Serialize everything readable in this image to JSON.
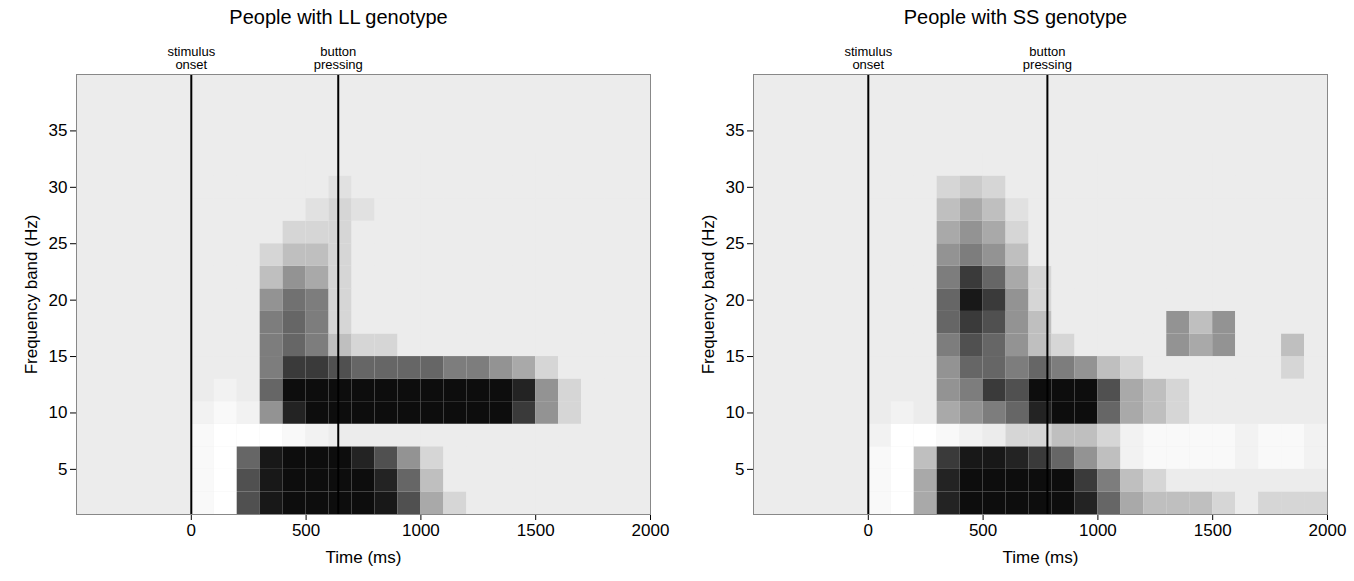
{
  "chart_data": [
    {
      "type": "heatmap",
      "title": "People with LL genotype",
      "x_label": "Time (ms)",
      "y_label": "Frequency band (Hz)",
      "xlim": [
        -500,
        2000
      ],
      "xticks": [
        0,
        500,
        1000,
        1500,
        2000
      ],
      "ylim": [
        1,
        40
      ],
      "yticks": [
        5,
        10,
        15,
        20,
        25,
        30,
        35
      ],
      "annotations": [
        {
          "x": 0,
          "text": "stimulus onset"
        },
        {
          "x": 640,
          "text": "button pressing"
        }
      ],
      "power_scale": [
        -0.3,
        0,
        1
      ],
      "time_bins": [
        0,
        100,
        200,
        300,
        400,
        500,
        600,
        700,
        800,
        900,
        1000,
        1100,
        1200,
        1300,
        1400,
        1500,
        1600,
        1700,
        1800,
        1900,
        2000
      ],
      "freq_bins": [
        1,
        3,
        5,
        7,
        9,
        11,
        13,
        15,
        17,
        19,
        21,
        23,
        25,
        27,
        29,
        31,
        33
      ],
      "power": [
        [
          -0.2,
          -0.3,
          0.7,
          0.95,
          1,
          1,
          1,
          1,
          0.95,
          0.7,
          0.3,
          0.1,
          0,
          0,
          0,
          0,
          0,
          0,
          0,
          0
        ],
        [
          -0.2,
          -0.3,
          0.7,
          0.95,
          1,
          1,
          1,
          1,
          0.9,
          0.6,
          0.2,
          0,
          0,
          0,
          0,
          0,
          0,
          0,
          0,
          0
        ],
        [
          -0.2,
          -0.3,
          0.6,
          0.95,
          1,
          1,
          1,
          0.9,
          0.7,
          0.4,
          0.1,
          0,
          0,
          0,
          0,
          0,
          0,
          0,
          0,
          0
        ],
        [
          -0.2,
          -0.3,
          -0.3,
          -0.3,
          -0.2,
          -0.1,
          0,
          0,
          0,
          0,
          0,
          0,
          0,
          0,
          0,
          0,
          0,
          0,
          0,
          0
        ],
        [
          -0.1,
          -0.2,
          -0.1,
          0.4,
          0.9,
          1,
          1,
          1,
          1,
          1,
          1,
          1,
          1,
          1,
          0.8,
          0.4,
          0.1,
          0,
          0,
          0
        ],
        [
          0,
          -0.1,
          0,
          0.6,
          1,
          1,
          1,
          1,
          1,
          1,
          1,
          1,
          1,
          1,
          0.9,
          0.4,
          0.1,
          0,
          0,
          0
        ],
        [
          0,
          0,
          0,
          0.5,
          0.8,
          0.8,
          0.7,
          0.6,
          0.6,
          0.6,
          0.6,
          0.5,
          0.5,
          0.4,
          0.3,
          0.1,
          0,
          0,
          0,
          0
        ],
        [
          0,
          0,
          0,
          0.5,
          0.6,
          0.5,
          0.2,
          0.1,
          0.1,
          0,
          0,
          0,
          0,
          0,
          0,
          0,
          0,
          0,
          0,
          0
        ],
        [
          0,
          0,
          0,
          0.5,
          0.6,
          0.5,
          0.1,
          0,
          0,
          0,
          0,
          0,
          0,
          0,
          0,
          0,
          0,
          0,
          0,
          0
        ],
        [
          0,
          0,
          0,
          0.4,
          0.55,
          0.5,
          0.1,
          0,
          0,
          0,
          0,
          0,
          0,
          0,
          0,
          0,
          0,
          0,
          0,
          0
        ],
        [
          0,
          0,
          0,
          0.2,
          0.4,
          0.3,
          0.1,
          0,
          0,
          0,
          0,
          0,
          0,
          0,
          0,
          0,
          0,
          0,
          0,
          0
        ],
        [
          0,
          0,
          0,
          0.1,
          0.2,
          0.2,
          0.1,
          0,
          0,
          0,
          0,
          0,
          0,
          0,
          0,
          0,
          0,
          0,
          0,
          0
        ],
        [
          0,
          0,
          0,
          0,
          0.1,
          0.1,
          0.1,
          0,
          0,
          0,
          0,
          0,
          0,
          0,
          0,
          0,
          0,
          0,
          0,
          0
        ],
        [
          0,
          0,
          0,
          0,
          0,
          0.05,
          0.1,
          0.05,
          0,
          0,
          0,
          0,
          0,
          0,
          0,
          0,
          0,
          0,
          0,
          0
        ],
        [
          0,
          0,
          0,
          0,
          0,
          0,
          0.05,
          0,
          0,
          0,
          0,
          0,
          0,
          0,
          0,
          0,
          0,
          0,
          0,
          0
        ],
        [
          0,
          0,
          0,
          0,
          0,
          0,
          0,
          0,
          0,
          0,
          0,
          0,
          0,
          0,
          0,
          0,
          0,
          0,
          0,
          0
        ]
      ]
    },
    {
      "type": "heatmap",
      "title": "People with SS genotype",
      "x_label": "Time (ms)",
      "y_label": "Frequency band (Hz)",
      "xlim": [
        -500,
        2000
      ],
      "xticks": [
        0,
        500,
        1000,
        1500,
        2000
      ],
      "ylim": [
        1,
        40
      ],
      "yticks": [
        5,
        10,
        15,
        20,
        25,
        30,
        35
      ],
      "annotations": [
        {
          "x": 0,
          "text": "stimulus onset"
        },
        {
          "x": 780,
          "text": "button pressing"
        }
      ],
      "power_scale": [
        -0.3,
        0,
        1
      ],
      "time_bins": [
        0,
        100,
        200,
        300,
        400,
        500,
        600,
        700,
        800,
        900,
        1000,
        1100,
        1200,
        1300,
        1400,
        1500,
        1600,
        1700,
        1800,
        1900,
        2000
      ],
      "freq_bins": [
        1,
        3,
        5,
        7,
        9,
        11,
        13,
        15,
        17,
        19,
        21,
        23,
        25,
        27,
        29,
        31,
        33
      ],
      "power": [
        [
          -0.2,
          -0.3,
          0.3,
          0.9,
          1,
          1,
          1,
          1,
          1,
          0.9,
          0.6,
          0.3,
          0.2,
          0.2,
          0.2,
          0.1,
          0,
          0.1,
          0.1,
          0.1
        ],
        [
          -0.2,
          -0.3,
          0.3,
          0.9,
          1,
          1,
          1,
          1,
          1,
          0.8,
          0.5,
          0.2,
          0.1,
          0,
          0,
          0,
          0,
          0,
          0,
          0
        ],
        [
          -0.2,
          -0.3,
          0.2,
          0.8,
          0.95,
          0.95,
          0.9,
          0.8,
          0.6,
          0.4,
          0.2,
          -0.1,
          -0.2,
          -0.2,
          -0.2,
          -0.2,
          -0.1,
          -0.2,
          -0.2,
          -0.1
        ],
        [
          -0.1,
          -0.3,
          -0.3,
          -0.2,
          -0.1,
          0,
          0.1,
          0.1,
          0.2,
          0.2,
          0.1,
          -0.1,
          -0.2,
          -0.2,
          -0.2,
          -0.2,
          -0.1,
          -0.2,
          -0.2,
          -0.1
        ],
        [
          0,
          -0.1,
          0,
          0.3,
          0.4,
          0.5,
          0.6,
          0.9,
          1,
          1,
          0.6,
          0.3,
          0.2,
          0.1,
          0,
          0,
          0,
          0,
          0,
          0
        ],
        [
          0,
          0,
          0,
          0.4,
          0.5,
          0.8,
          0.7,
          1,
          1,
          1,
          0.7,
          0.3,
          0.2,
          0.1,
          0,
          0,
          0,
          0,
          0,
          0
        ],
        [
          0,
          0,
          0,
          0.4,
          0.6,
          0.6,
          0.5,
          0.6,
          0.5,
          0.4,
          0.2,
          0.1,
          0,
          0,
          0,
          0,
          0,
          0,
          0.1,
          0
        ],
        [
          0,
          0,
          0,
          0.5,
          0.7,
          0.6,
          0.4,
          0.2,
          0.1,
          0,
          0,
          0,
          0,
          0.4,
          0.3,
          0.4,
          0,
          0,
          0.2,
          0
        ],
        [
          0,
          0,
          0,
          0.6,
          0.8,
          0.7,
          0.4,
          0.2,
          0,
          0,
          0,
          0,
          0,
          0.4,
          0.2,
          0.4,
          0,
          0,
          0,
          0
        ],
        [
          0,
          0,
          0,
          0.6,
          0.95,
          0.8,
          0.4,
          0.1,
          0,
          0,
          0,
          0,
          0,
          0,
          0,
          0,
          0,
          0,
          0,
          0
        ],
        [
          0,
          0,
          0,
          0.5,
          0.8,
          0.6,
          0.3,
          0.1,
          0,
          0,
          0,
          0,
          0,
          0,
          0,
          0,
          0,
          0,
          0,
          0
        ],
        [
          0,
          0,
          0,
          0.4,
          0.5,
          0.4,
          0.2,
          0,
          0,
          0,
          0,
          0,
          0,
          0,
          0,
          0,
          0,
          0,
          0,
          0
        ],
        [
          0,
          0,
          0,
          0.3,
          0.4,
          0.3,
          0.1,
          0,
          0,
          0,
          0,
          0,
          0,
          0,
          0,
          0,
          0,
          0,
          0,
          0
        ],
        [
          0,
          0,
          0,
          0.2,
          0.3,
          0.2,
          0.05,
          0,
          0,
          0,
          0,
          0,
          0,
          0,
          0,
          0,
          0,
          0,
          0,
          0
        ],
        [
          0,
          0,
          0,
          0.1,
          0.15,
          0.1,
          0,
          0,
          0,
          0,
          0,
          0,
          0,
          0,
          0,
          0,
          0,
          0,
          0,
          0
        ],
        [
          0,
          0,
          0,
          0,
          0,
          0,
          0,
          0,
          0,
          0,
          0,
          0,
          0,
          0,
          0,
          0,
          0,
          0,
          0,
          0
        ]
      ]
    }
  ]
}
